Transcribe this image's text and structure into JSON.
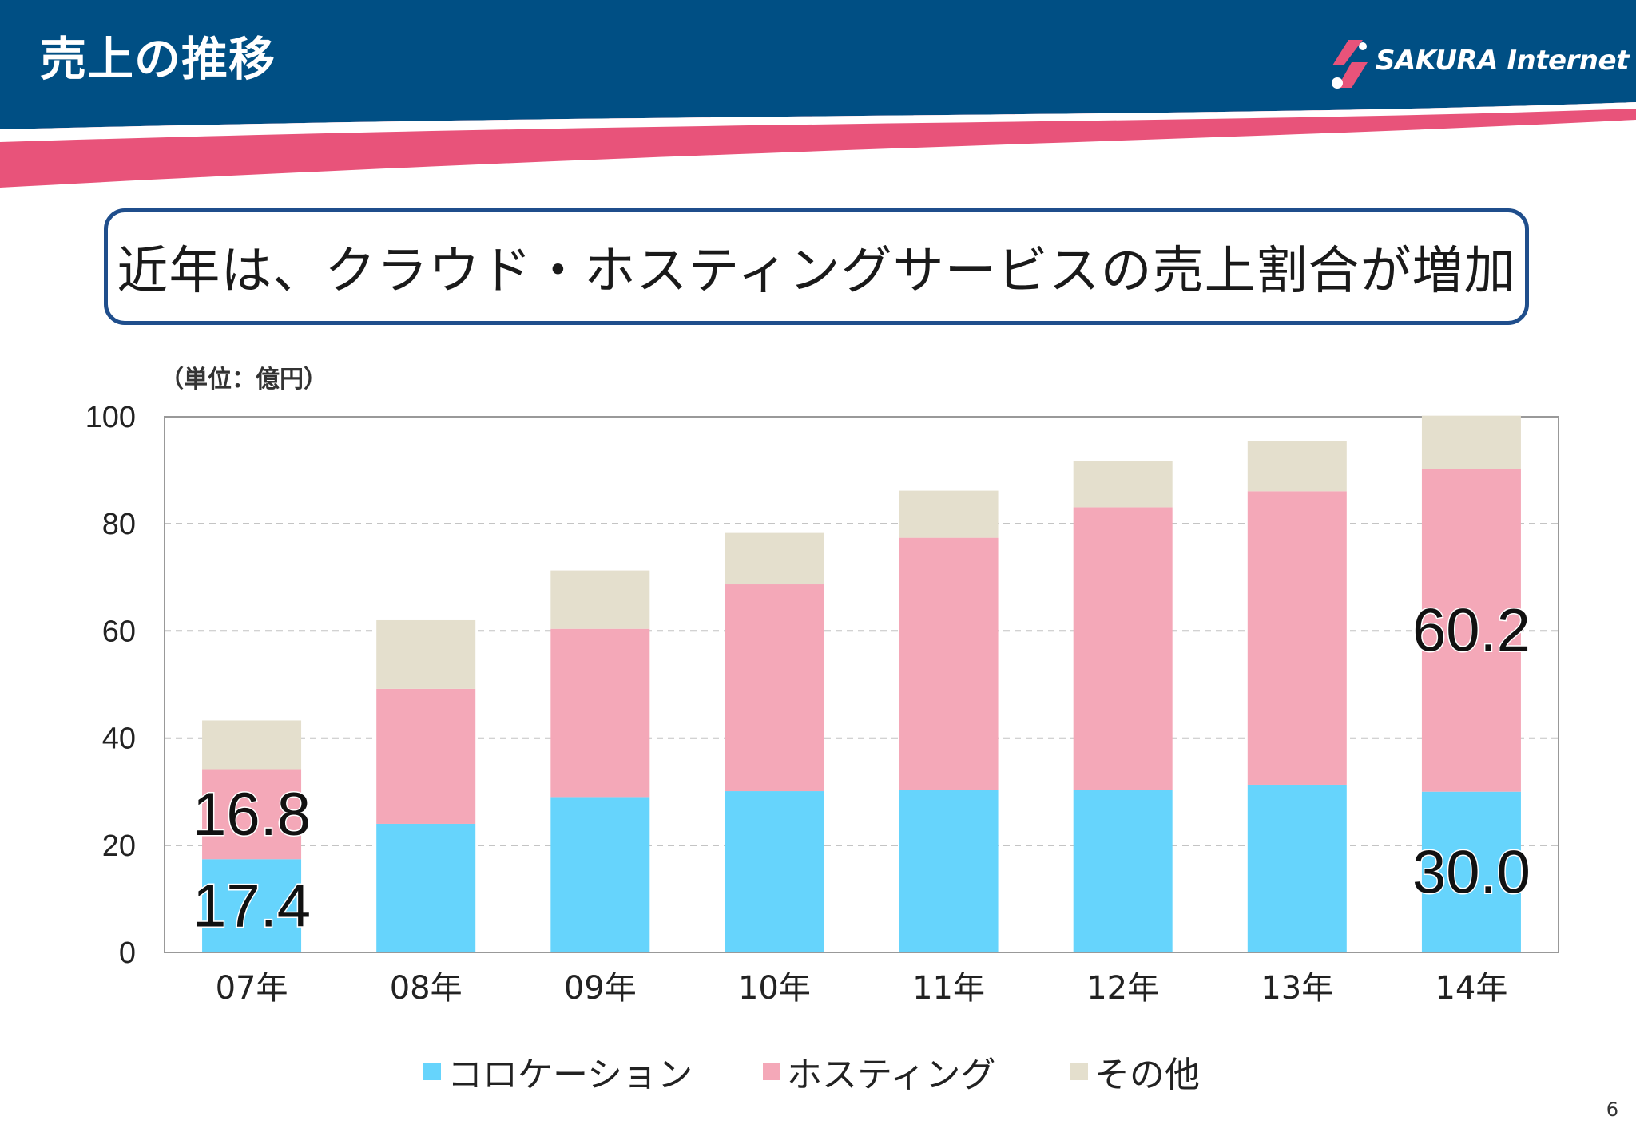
{
  "slide": {
    "title": "売上の推移",
    "logo_text": "SAKURA Internet",
    "callout": "近年は、クラウド・ホスティングサービスの売上割合が増加",
    "unit_label": "（単位：億円）",
    "page_number": "6",
    "colors": {
      "header_blue": "#004f84",
      "wave_pink": "#e8537a",
      "callout_border": "#1f4e8c"
    }
  },
  "chart_data": {
    "type": "bar",
    "stacked": true,
    "title": "",
    "xlabel": "",
    "ylabel": "",
    "ylim": [
      0,
      100
    ],
    "yticks": [
      "0",
      "20",
      "40",
      "60",
      "80",
      "100"
    ],
    "grid": true,
    "legend_position": "bottom",
    "categories": [
      "07年",
      "08年",
      "09年",
      "10年",
      "11年",
      "12年",
      "13年",
      "14年"
    ],
    "series": [
      {
        "name": "コロケーション",
        "color": "#66d4fc",
        "values": [
          17.4,
          24,
          29,
          30.1,
          30.3,
          30.3,
          31.3,
          30.0
        ]
      },
      {
        "name": "ホスティング",
        "color": "#f4a8b8",
        "values": [
          16.8,
          25.2,
          31.4,
          38.6,
          47.1,
          52.8,
          54.8,
          60.2
        ]
      },
      {
        "name": "その他",
        "color": "#e4dfcd",
        "values": [
          9.1,
          12.8,
          10.9,
          9.6,
          8.8,
          8.7,
          9.3,
          10.0
        ]
      }
    ],
    "data_labels": [
      {
        "text": "16.8",
        "category": "07年",
        "series": "ホスティング"
      },
      {
        "text": "17.4",
        "category": "07年",
        "series": "コロケーション"
      },
      {
        "text": "60.2",
        "category": "14年",
        "series": "ホスティング"
      },
      {
        "text": "30.0",
        "category": "14年",
        "series": "コロケーション"
      }
    ]
  }
}
